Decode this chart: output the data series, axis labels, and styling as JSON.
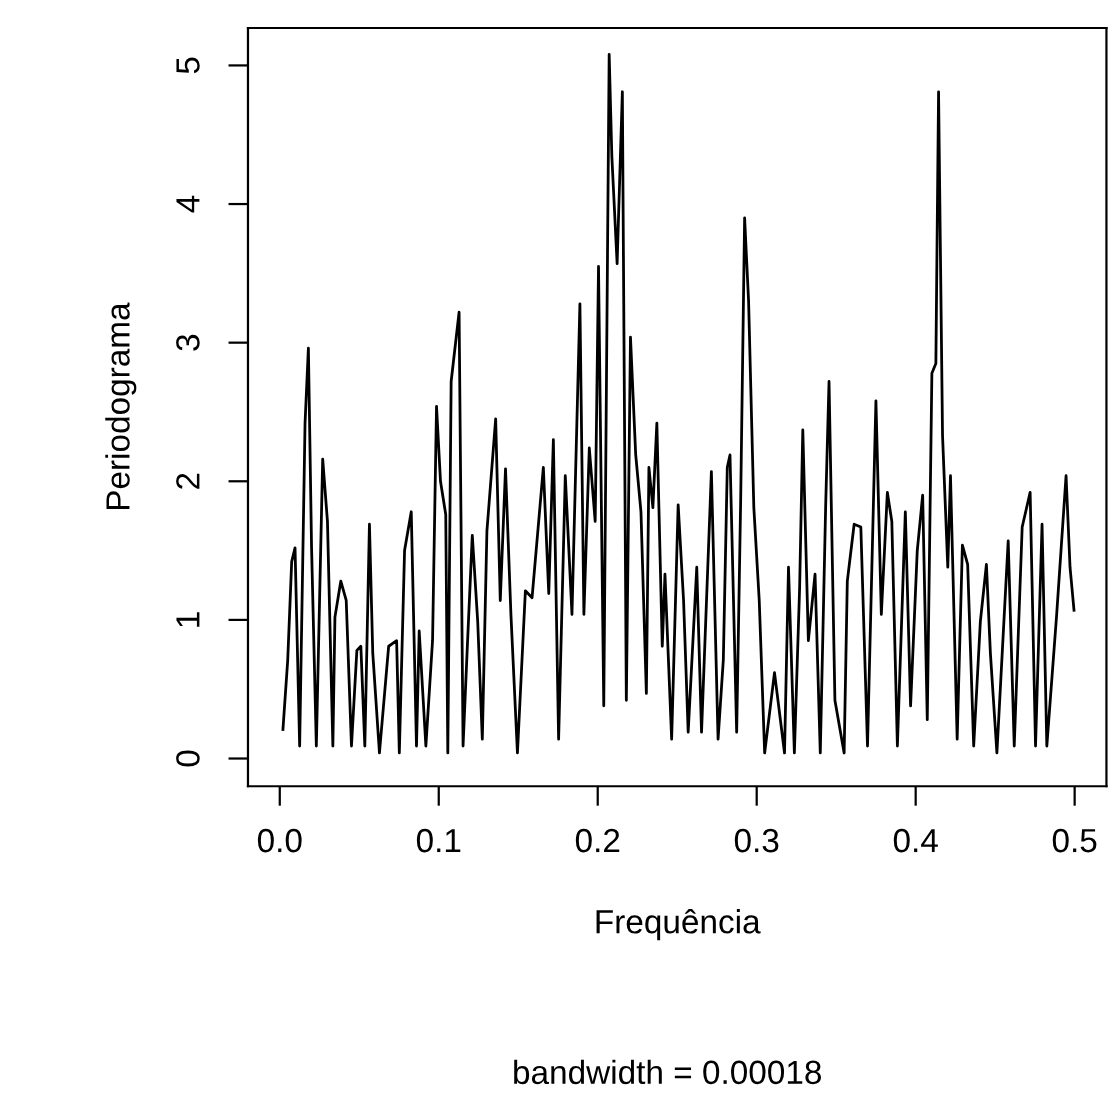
{
  "chart_data": {
    "type": "line",
    "xlabel": "Frequência",
    "ylabel": "Periodograma",
    "annotations": [
      "bandwidth = 0.00018"
    ],
    "xlim": [
      -0.02,
      0.52
    ],
    "ylim": [
      -0.2,
      5.27
    ],
    "xticks": [
      {
        "value": 0,
        "label": "0.0"
      },
      0.1,
      0.2,
      0.3,
      0.4,
      0.5
    ],
    "yticks": [
      0,
      1,
      2,
      3,
      4,
      5
    ],
    "grid": false,
    "legend": false,
    "marker": "none",
    "line_style": "solid",
    "series": [
      {
        "color": "#000000",
        "x": [
          0.002,
          0.005,
          0.0075,
          0.0096,
          0.0125,
          0.0159,
          0.018,
          0.02,
          0.023,
          0.027,
          0.03,
          0.0334,
          0.0347,
          0.0384,
          0.0418,
          0.0451,
          0.0485,
          0.051,
          0.0535,
          0.0564,
          0.0585,
          0.0627,
          0.0685,
          0.0735,
          0.0752,
          0.0785,
          0.0827,
          0.086,
          0.0877,
          0.0919,
          0.0961,
          0.0986,
          0.1011,
          0.1044,
          0.1057,
          0.1078,
          0.1128,
          0.1153,
          0.1178,
          0.1211,
          0.1245,
          0.1274,
          0.1303,
          0.1358,
          0.1387,
          0.142,
          0.1454,
          0.1495,
          0.1545,
          0.1587,
          0.1658,
          0.1692,
          0.1721,
          0.1754,
          0.1796,
          0.1838,
          0.1888,
          0.1913,
          0.1947,
          0.1984,
          0.2005,
          0.2038,
          0.2072,
          0.2089,
          0.2122,
          0.2155,
          0.218,
          0.2206,
          0.2239,
          0.2272,
          0.2306,
          0.2322,
          0.2347,
          0.2372,
          0.2406,
          0.2423,
          0.2465,
          0.2506,
          0.254,
          0.2569,
          0.2623,
          0.2653,
          0.2715,
          0.2757,
          0.279,
          0.2815,
          0.2832,
          0.2874,
          0.2899,
          0.2924,
          0.2949,
          0.2982,
          0.3016,
          0.305,
          0.3112,
          0.3175,
          0.32,
          0.3237,
          0.327,
          0.329,
          0.3325,
          0.3367,
          0.34,
          0.3434,
          0.3455,
          0.3492,
          0.355,
          0.357,
          0.3613,
          0.3655,
          0.3697,
          0.375,
          0.3784,
          0.3822,
          0.385,
          0.3885,
          0.3935,
          0.3968,
          0.401,
          0.4044,
          0.4073,
          0.4102,
          0.4127,
          0.4144,
          0.4169,
          0.4202,
          0.4219,
          0.4261,
          0.4294,
          0.4327,
          0.4365,
          0.4407,
          0.4445,
          0.447,
          0.4511,
          0.4582,
          0.462,
          0.467,
          0.472,
          0.4754,
          0.4795,
          0.4825,
          0.4887,
          0.4946,
          0.4971,
          0.4996
        ],
        "values": [
          0.21,
          0.71,
          1.42,
          1.52,
          0.09,
          2.42,
          2.96,
          1.52,
          0.09,
          2.16,
          1.71,
          0.09,
          1.02,
          1.28,
          1.14,
          0.09,
          0.78,
          0.81,
          0.09,
          1.69,
          0.76,
          0.04,
          0.81,
          0.85,
          0.04,
          1.5,
          1.78,
          0.09,
          0.92,
          0.09,
          0.85,
          2.54,
          2.0,
          1.76,
          0.04,
          2.72,
          3.22,
          0.09,
          0.76,
          1.61,
          0.99,
          0.14,
          1.64,
          2.45,
          1.14,
          2.09,
          1.04,
          0.04,
          1.21,
          1.16,
          2.1,
          1.19,
          2.3,
          0.14,
          2.04,
          1.04,
          3.28,
          1.04,
          2.24,
          1.71,
          3.55,
          0.38,
          5.08,
          4.34,
          3.57,
          4.81,
          0.42,
          3.04,
          2.19,
          1.78,
          0.47,
          2.1,
          1.81,
          2.42,
          0.81,
          1.33,
          0.14,
          1.83,
          1.14,
          0.19,
          1.38,
          0.19,
          2.07,
          0.14,
          0.71,
          2.1,
          2.19,
          0.19,
          1.85,
          3.9,
          3.3,
          1.81,
          1.14,
          0.04,
          0.62,
          0.04,
          1.38,
          0.04,
          1.23,
          2.37,
          0.85,
          1.33,
          0.04,
          1.83,
          2.72,
          0.42,
          0.04,
          1.28,
          1.69,
          1.67,
          0.09,
          2.58,
          1.04,
          1.92,
          1.71,
          0.09,
          1.78,
          0.38,
          1.5,
          1.9,
          0.28,
          2.78,
          2.85,
          4.81,
          2.33,
          1.38,
          2.04,
          0.14,
          1.54,
          1.4,
          0.09,
          0.99,
          1.4,
          0.76,
          0.04,
          1.57,
          0.09,
          1.67,
          1.92,
          0.09,
          1.69,
          0.09,
          1.04,
          2.04,
          1.38,
          1.07
        ]
      }
    ]
  }
}
